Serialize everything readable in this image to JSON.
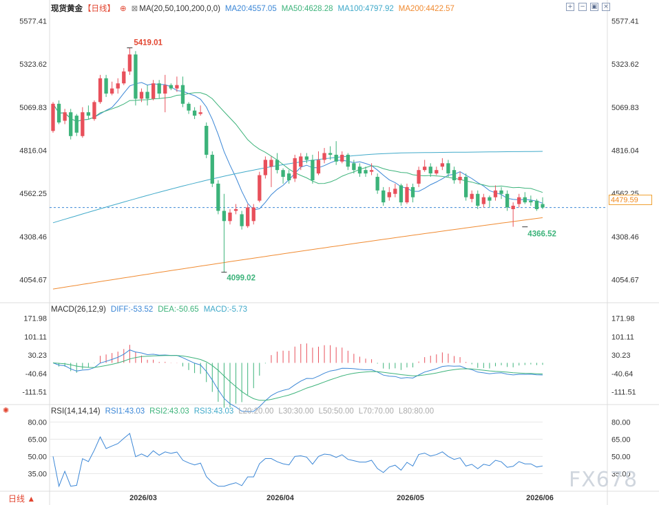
{
  "title": "现货黄金",
  "period_tag": "【日线】",
  "ma_params": "MA(20,50,100,200,0,0)",
  "ma_values": [
    {
      "label": "MA20:4557.05",
      "color": "#3a86d6"
    },
    {
      "label": "MA50:4628.28",
      "color": "#3cb37a"
    },
    {
      "label": "MA100:4797.92",
      "color": "#3fa9c9"
    },
    {
      "label": "MA200:4422.57",
      "color": "#f08a30"
    }
  ],
  "macd_header": [
    {
      "label": "MACD(26,12,9)",
      "color": "#333333"
    },
    {
      "label": "DIFF:-53.52",
      "color": "#3a86d6"
    },
    {
      "label": "DEA:-50.65",
      "color": "#3cb37a"
    },
    {
      "label": "MACD:-5.73",
      "color": "#3fa9c9"
    }
  ],
  "rsi_header": [
    {
      "label": "RSI(14,14,14)",
      "color": "#333333"
    },
    {
      "label": "RSI1:43.03",
      "color": "#3a86d6"
    },
    {
      "label": "RSI2:43.03",
      "color": "#3cb37a"
    },
    {
      "label": "RSI3:43.03",
      "color": "#3fa9c9"
    },
    {
      "label": "L20:20.00",
      "color": "#aaaaaa"
    },
    {
      "label": "L30:30.00",
      "color": "#aaaaaa"
    },
    {
      "label": "L50:50.00",
      "color": "#aaaaaa"
    },
    {
      "label": "L70:70.00",
      "color": "#aaaaaa"
    },
    {
      "label": "L80:80.00",
      "color": "#aaaaaa"
    }
  ],
  "current_price": "4479.59",
  "period_label": "日线 ▲",
  "watermark": "FX678",
  "icons": [
    "plus-zoom-icon",
    "minus-zoom-icon",
    "fullscreen-icon",
    "close-icon"
  ],
  "colors": {
    "up": "#e8505b",
    "down": "#3cb37a",
    "ma20": "#3a86d6",
    "ma50": "#3cb37a",
    "ma100": "#3fa9c9",
    "ma200": "#f08a30"
  },
  "chart_data": [
    {
      "type": "candlestick",
      "title": "现货黄金",
      "y_ticks": [
        "5577.41",
        "5323.62",
        "5069.83",
        "4816.04",
        "4562.25",
        "4308.46",
        "4054.67"
      ],
      "ylim": [
        3960,
        5660
      ],
      "x_ticks": [
        "2026/03",
        "2026/04",
        "2026/05",
        "2026/06"
      ],
      "annotations": [
        {
          "label": "5419.01",
          "kind": "high"
        },
        {
          "label": "4099.02",
          "kind": "low"
        },
        {
          "label": "4366.52",
          "kind": "low"
        }
      ],
      "last_price_line": 4479.59,
      "candles": [
        [
          4930,
          5090,
          5100,
          4920
        ],
        [
          5090,
          4980,
          5110,
          4970
        ],
        [
          4990,
          5040,
          5060,
          4970
        ],
        [
          5040,
          4900,
          5060,
          4880
        ],
        [
          5020,
          4920,
          5030,
          4900
        ],
        [
          4900,
          5040,
          5070,
          4890
        ],
        [
          5040,
          5020,
          5080,
          5000
        ],
        [
          5000,
          5100,
          5110,
          4990
        ],
        [
          5100,
          5240,
          5260,
          5090
        ],
        [
          5240,
          5150,
          5260,
          5130
        ],
        [
          5150,
          5180,
          5220,
          5140
        ],
        [
          5180,
          5210,
          5240,
          5150
        ],
        [
          5210,
          5280,
          5300,
          5200
        ],
        [
          5280,
          5380,
          5419,
          5260
        ],
        [
          5380,
          5120,
          5400,
          5080
        ],
        [
          5120,
          5160,
          5180,
          5100
        ],
        [
          5160,
          5120,
          5200,
          5080
        ],
        [
          5120,
          5210,
          5230,
          5110
        ],
        [
          5210,
          5150,
          5230,
          5120
        ],
        [
          5150,
          5200,
          5260,
          5040
        ],
        [
          5200,
          5180,
          5210,
          5170
        ],
        [
          5180,
          5200,
          5250,
          5160
        ],
        [
          5200,
          5090,
          5250,
          5070
        ],
        [
          5090,
          5050,
          5100,
          5030
        ],
        [
          5050,
          5020,
          5070,
          5000
        ],
        [
          5030,
          5040,
          5080,
          5020
        ],
        [
          4960,
          4790,
          4980,
          4770
        ],
        [
          4790,
          4620,
          4810,
          4600
        ],
        [
          4620,
          4460,
          4640,
          4440
        ],
        [
          4460,
          4400,
          4560,
          4099
        ],
        [
          4400,
          4450,
          4470,
          4380
        ],
        [
          4460,
          4470,
          4500,
          4440
        ],
        [
          4440,
          4370,
          4460,
          4350
        ],
        [
          4370,
          4480,
          4500,
          4360
        ],
        [
          4400,
          4480,
          4500,
          4380
        ],
        [
          4520,
          4670,
          4690,
          4510
        ],
        [
          4670,
          4760,
          4780,
          4650
        ],
        [
          4720,
          4760,
          4780,
          4600
        ],
        [
          4760,
          4700,
          4800,
          4680
        ],
        [
          4700,
          4660,
          4710,
          4620
        ],
        [
          4680,
          4640,
          4700,
          4620
        ],
        [
          4650,
          4770,
          4790,
          4630
        ],
        [
          4720,
          4780,
          4800,
          4700
        ],
        [
          4780,
          4760,
          4800,
          4740
        ],
        [
          4760,
          4640,
          4790,
          4620
        ],
        [
          4680,
          4760,
          4810,
          4670
        ],
        [
          4760,
          4800,
          4830,
          4740
        ],
        [
          4800,
          4790,
          4840,
          4760
        ],
        [
          4790,
          4750,
          4870,
          4730
        ],
        [
          4750,
          4790,
          4810,
          4740
        ],
        [
          4790,
          4720,
          4800,
          4700
        ],
        [
          4740,
          4700,
          4760,
          4680
        ],
        [
          4720,
          4680,
          4740,
          4660
        ],
        [
          4700,
          4680,
          4720,
          4660
        ],
        [
          4690,
          4700,
          4740,
          4670
        ],
        [
          4660,
          4580,
          4680,
          4560
        ],
        [
          4580,
          4510,
          4600,
          4490
        ],
        [
          4540,
          4570,
          4600,
          4520
        ],
        [
          4560,
          4590,
          4620,
          4540
        ],
        [
          4610,
          4510,
          4620,
          4490
        ],
        [
          4510,
          4600,
          4620,
          4500
        ],
        [
          4600,
          4540,
          4620,
          4510
        ],
        [
          4620,
          4700,
          4720,
          4600
        ],
        [
          4700,
          4720,
          4760,
          4690
        ],
        [
          4720,
          4680,
          4740,
          4660
        ],
        [
          4680,
          4700,
          4720,
          4670
        ],
        [
          4720,
          4740,
          4770,
          4700
        ],
        [
          4740,
          4680,
          4760,
          4660
        ],
        [
          4700,
          4640,
          4720,
          4620
        ],
        [
          4640,
          4660,
          4690,
          4620
        ],
        [
          4660,
          4540,
          4680,
          4520
        ],
        [
          4530,
          4560,
          4580,
          4510
        ],
        [
          4560,
          4490,
          4580,
          4470
        ],
        [
          4500,
          4540,
          4560,
          4480
        ],
        [
          4540,
          4520,
          4550,
          4480
        ],
        [
          4540,
          4580,
          4610,
          4520
        ],
        [
          4580,
          4560,
          4600,
          4530
        ],
        [
          4560,
          4480,
          4580,
          4460
        ],
        [
          4470,
          4490,
          4510,
          4366.52
        ],
        [
          4500,
          4540,
          4560,
          4480
        ],
        [
          4540,
          4510,
          4570,
          4500
        ],
        [
          4520,
          4510,
          4550,
          4490
        ],
        [
          4520,
          4470,
          4530,
          4460
        ],
        [
          4500,
          4479.59,
          4540,
          4470
        ]
      ]
    },
    {
      "type": "line",
      "title": "MACD(26,12,9)",
      "y_ticks": [
        "171.98",
        "101.11",
        "30.23",
        "-40.64",
        "-111.51"
      ],
      "ylim": [
        -150,
        200
      ]
    },
    {
      "type": "line",
      "title": "RSI(14,14,14)",
      "y_ticks": [
        "80.00",
        "65.00",
        "50.00",
        "35.00"
      ],
      "ylim": [
        22,
        88
      ]
    }
  ]
}
